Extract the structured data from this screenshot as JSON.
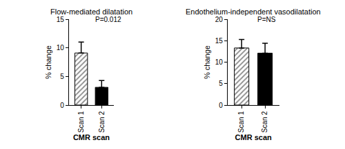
{
  "chart_data": [
    {
      "type": "bar",
      "title": "Flow-mediated dilatation",
      "annotations": [
        "P=0.012"
      ],
      "x_label": "CMR scan",
      "y_label": "% change",
      "categories": [
        "Scan 1",
        "Scan 2"
      ],
      "values": [
        9.1,
        3.1
      ],
      "errors": [
        1.9,
        1.2
      ],
      "colors": [
        "#8c8c8c",
        "#000000"
      ],
      "ylim": [
        0,
        15
      ],
      "yticks": [
        0,
        5,
        10,
        15
      ],
      "grid": false
    },
    {
      "type": "bar",
      "title": "Endothelium-independent vasodilatation",
      "annotations": [
        "P=NS"
      ],
      "x_label": "CMR scan",
      "y_label": "% change",
      "categories": [
        "Scan 1",
        "Scan 2"
      ],
      "values": [
        13.3,
        12.1
      ],
      "errors": [
        2.0,
        2.3
      ],
      "colors": [
        "#8c8c8c",
        "#000000"
      ],
      "ylim": [
        0,
        20
      ],
      "yticks": [
        0,
        5,
        10,
        15,
        20
      ],
      "grid": false
    }
  ]
}
